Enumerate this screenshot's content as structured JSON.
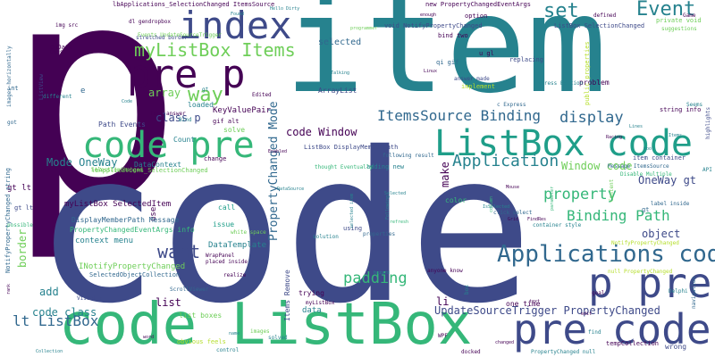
{
  "palette": {
    "dark_purple": "#440154",
    "indigo": "#3e4a89",
    "slate_blue": "#31688e",
    "teal": "#26828e",
    "sea_green": "#1f9e89",
    "green": "#35b779",
    "light_green": "#6ece58",
    "lime": "#b5de2b"
  },
  "words": [
    {
      "text": "p",
      "color": "#440154",
      "vertical": false
    },
    {
      "text": "item",
      "color": "#26828e",
      "vertical": false
    },
    {
      "text": "code",
      "color": "#3e4a89",
      "vertical": false
    },
    {
      "text": "code ListBox",
      "color": "#35b779",
      "vertical": false
    },
    {
      "text": "code pre",
      "color": "#35b779",
      "vertical": false
    },
    {
      "text": "ListBox code",
      "color": "#1f9e89",
      "vertical": false
    },
    {
      "text": "pre code",
      "color": "#3e4a89",
      "vertical": false
    },
    {
      "text": "p pre",
      "color": "#3e4a89",
      "vertical": false
    },
    {
      "text": "pre p",
      "color": "#440154",
      "vertical": false
    },
    {
      "text": "index",
      "color": "#3e4a89",
      "vertical": false
    },
    {
      "text": "Applications code",
      "color": "#31688e",
      "vertical": false
    },
    {
      "text": "myListBox Items",
      "color": "#6ece58",
      "vertical": false
    },
    {
      "text": "way",
      "color": "#6ece58",
      "vertical": false
    },
    {
      "text": "set",
      "color": "#26828e",
      "vertical": false
    },
    {
      "text": "Event",
      "color": "#26828e",
      "vertical": false
    },
    {
      "text": "ItemsSource Binding",
      "color": "#31688e",
      "vertical": false
    },
    {
      "text": "display",
      "color": "#31688e",
      "vertical": false
    },
    {
      "text": "Application",
      "color": "#26828e",
      "vertical": false
    },
    {
      "text": "property",
      "color": "#35b779",
      "vertical": false
    },
    {
      "text": "Binding Path",
      "color": "#35b779",
      "vertical": false
    },
    {
      "text": "want",
      "color": "#3e4a89",
      "vertical": false
    },
    {
      "text": "padding",
      "color": "#35b779",
      "vertical": false
    },
    {
      "text": "lt ListBox",
      "color": "#31688e",
      "vertical": true
    },
    {
      "text": "PropertyChanged Mode",
      "color": "#31688e",
      "vertical": true
    },
    {
      "text": "UpdateSourceTrigger PropertyChanged",
      "color": "#3e4a89",
      "vertical": false
    },
    {
      "text": "code Window",
      "color": "#440154",
      "vertical": false
    },
    {
      "text": "Window code",
      "color": "#6ece58",
      "vertical": false
    },
    {
      "text": "OneWay gt",
      "color": "#3e4a89",
      "vertical": false
    },
    {
      "text": "Mode OneWay",
      "color": "#26828e",
      "vertical": false
    },
    {
      "text": "class p",
      "color": "#3e4a89",
      "vertical": false
    },
    {
      "text": "array",
      "color": "#6ece58",
      "vertical": false
    },
    {
      "text": "code class",
      "color": "#26828e",
      "vertical": false
    },
    {
      "text": "myListBox SelectedItem",
      "color": "#440154",
      "vertical": false
    },
    {
      "text": "KeyValuePair",
      "color": "#440154",
      "vertical": false
    },
    {
      "text": "DataTemplate",
      "color": "#26828e",
      "vertical": false
    },
    {
      "text": "context menu",
      "color": "#26828e",
      "vertical": false
    },
    {
      "text": "selected",
      "color": "#31688e",
      "vertical": false
    },
    {
      "text": "border",
      "color": "#6ece58",
      "vertical": true
    },
    {
      "text": "object",
      "color": "#3e4a89",
      "vertical": false
    },
    {
      "text": "make",
      "color": "#440154",
      "vertical": true
    },
    {
      "text": "list",
      "color": "#440154",
      "vertical": false
    },
    {
      "text": "add",
      "color": "#26828e",
      "vertical": false
    },
    {
      "text": "li",
      "color": "#440154",
      "vertical": false
    },
    {
      "text": "data",
      "color": "#26828e",
      "vertical": false
    },
    {
      "text": "color",
      "color": "#35b779",
      "vertical": false
    },
    {
      "text": "gt lt",
      "color": "#440154",
      "vertical": false
    },
    {
      "text": "use",
      "color": "#440154",
      "vertical": true
    },
    {
      "text": "call",
      "color": "#1f9e89",
      "vertical": false
    },
    {
      "text": "issue",
      "color": "#1f9e89",
      "vertical": false
    },
    {
      "text": "problem",
      "color": "#440154",
      "vertical": false
    },
    {
      "text": "loaded",
      "color": "#26828e",
      "vertical": false
    },
    {
      "text": "solve",
      "color": "#6ece58",
      "vertical": false
    },
    {
      "text": "change",
      "color": "#440154",
      "vertical": false
    },
    {
      "text": "Count",
      "color": "#26828e",
      "vertical": false
    },
    {
      "text": "DataContext",
      "color": "#26828e",
      "vertical": false
    },
    {
      "text": "Path Events",
      "color": "#3e4a89",
      "vertical": false
    },
    {
      "text": "ArrayList",
      "color": "#3e4a89",
      "vertical": false
    },
    {
      "text": "one time",
      "color": "#440154",
      "vertical": false
    },
    {
      "text": "INotifyPropertyChanged",
      "color": "#6ece58",
      "vertical": false
    },
    {
      "text": "SelectedObjectCollection",
      "color": "#31688e",
      "vertical": false
    },
    {
      "text": "PropertyChangedEventArgs info",
      "color": "#35b779",
      "vertical": false
    },
    {
      "text": "DisplayMemberPath Message",
      "color": "#31688e",
      "vertical": false
    },
    {
      "text": "lbApplications_SelectionChanged ItemsSource",
      "color": "#440154",
      "vertical": false
    },
    {
      "text": "lbApplications_SelectionChanged",
      "color": "#6ece58",
      "vertical": false
    },
    {
      "text": "ListBox SelectionChanged",
      "color": "#3e4a89",
      "vertical": false
    },
    {
      "text": "void NotifyPropertyChanged",
      "color": "#3e4a89",
      "vertical": false
    },
    {
      "text": "new PropertyChangedEventArgs",
      "color": "#440154",
      "vertical": false
    },
    {
      "text": "Events UpdateSourceTrigger",
      "color": "#6ece58",
      "vertical": false
    },
    {
      "text": "ListBox DisplayMemberPath",
      "color": "#3e4a89",
      "vertical": false
    },
    {
      "text": "item container",
      "color": "#3e4a89",
      "vertical": false
    },
    {
      "text": "Message ItemsSource",
      "color": "#31688e",
      "vertical": false
    },
    {
      "text": "adding new",
      "color": "#26828e",
      "vertical": false
    },
    {
      "text": "NotifyPropertyChanged",
      "color": "#b5de2b",
      "vertical": false
    },
    {
      "text": "null PropertyChanged",
      "color": "#b5de2b",
      "vertical": false
    },
    {
      "text": "Items Remove",
      "color": "#3e4a89",
      "vertical": true
    },
    {
      "text": "NotifyPropertyChanged string",
      "color": "#31688e",
      "vertical": true
    },
    {
      "text": "SelectionChanged",
      "color": "#6ece58",
      "vertical": false
    },
    {
      "text": "implement",
      "color": "#b5de2b",
      "vertical": false
    },
    {
      "text": "Express Edition",
      "color": "#26828e",
      "vertical": false
    },
    {
      "text": "public properties",
      "color": "#b5de2b",
      "vertical": true
    },
    {
      "text": "ScrollViewer",
      "color": "#31688e",
      "vertical": false
    },
    {
      "text": "WrapPanel",
      "color": "#440154",
      "vertical": false
    },
    {
      "text": "placed inside",
      "color": "#440154",
      "vertical": false
    },
    {
      "text": "realize",
      "color": "#440154",
      "vertical": false
    },
    {
      "text": "trying",
      "color": "#440154",
      "vertical": false
    },
    {
      "text": "myListBox",
      "color": "#440154",
      "vertical": false
    },
    {
      "text": "string info",
      "color": "#440154",
      "vertical": false
    },
    {
      "text": "private void",
      "color": "#6ece58",
      "vertical": false
    },
    {
      "text": "bind two",
      "color": "#440154",
      "vertical": false
    },
    {
      "text": "stretched border",
      "color": "#3e4a89",
      "vertical": false
    },
    {
      "text": "different",
      "color": "#26828e",
      "vertical": false
    },
    {
      "text": "replacing",
      "color": "#3e4a89",
      "vertical": false
    },
    {
      "text": "following result",
      "color": "#31688e",
      "vertical": false
    },
    {
      "text": "thought Eventually",
      "color": "#35b779",
      "vertical": false
    },
    {
      "text": "gt lt",
      "color": "#3e4a89",
      "vertical": false
    },
    {
      "text": "solution",
      "color": "#26828e",
      "vertical": false
    },
    {
      "text": "using",
      "color": "#3e4a89",
      "vertical": false
    },
    {
      "text": "properties",
      "color": "#31688e",
      "vertical": false
    },
    {
      "text": "click select",
      "color": "#31688e",
      "vertical": false
    },
    {
      "text": "label inside",
      "color": "#31688e",
      "vertical": false
    },
    {
      "text": "anyone know",
      "color": "#440154",
      "vertical": false
    },
    {
      "text": "list boxes",
      "color": "#6ece58",
      "vertical": false
    },
    {
      "text": "Visual c",
      "color": "#3e4a89",
      "vertical": false
    },
    {
      "text": "control",
      "color": "#26828e",
      "vertical": false
    },
    {
      "text": "solved",
      "color": "#26828e",
      "vertical": false
    },
    {
      "text": "find",
      "color": "#26828e",
      "vertical": false
    },
    {
      "text": "wrong",
      "color": "#3e4a89",
      "vertical": false
    },
    {
      "text": "tempCollection",
      "color": "#440154",
      "vertical": false
    },
    {
      "text": "PropertyChanged null",
      "color": "#26828e",
      "vertical": false
    },
    {
      "text": "container style",
      "color": "#26828e",
      "vertical": false
    },
    {
      "text": "int",
      "color": "#31688e",
      "vertical": false
    },
    {
      "text": "got",
      "color": "#31688e",
      "vertical": false
    },
    {
      "text": "e",
      "color": "#31688e",
      "vertical": false
    },
    {
      "text": "c Express",
      "color": "#31688e",
      "vertical": false
    },
    {
      "text": "gt",
      "color": "#31688e",
      "vertical": false
    },
    {
      "text": "gt",
      "color": "#26828e",
      "vertical": false
    },
    {
      "text": "Edited",
      "color": "#440154",
      "vertical": false
    },
    {
      "text": "Ones",
      "color": "#440154",
      "vertical": false
    },
    {
      "text": "OnData",
      "color": "#440154",
      "vertical": false
    },
    {
      "text": "qi gif",
      "color": "#31688e",
      "vertical": false
    },
    {
      "text": "u gl",
      "color": "#440154",
      "vertical": false
    },
    {
      "text": "option",
      "color": "#440154",
      "vertical": false
    },
    {
      "text": "gif alt",
      "color": "#440154",
      "vertical": false
    },
    {
      "text": "Delphi",
      "color": "#26828e",
      "vertical": false
    },
    {
      "text": "WPF",
      "color": "#440154",
      "vertical": false
    },
    {
      "text": "goal",
      "color": "#440154",
      "vertical": false
    },
    {
      "text": "dl gendropbox",
      "color": "#440154",
      "vertical": false
    },
    {
      "text": "img src",
      "color": "#440154",
      "vertical": false
    },
    {
      "text": "Hello Dirty",
      "color": "#26828e",
      "vertical": false
    },
    {
      "text": "Found",
      "color": "#26828e",
      "vertical": false
    },
    {
      "text": "programmer",
      "color": "#6ece58",
      "vertical": false
    },
    {
      "text": "defined",
      "color": "#440154",
      "vertical": false
    },
    {
      "text": "Game",
      "color": "#440154",
      "vertical": false
    },
    {
      "text": "suggestions",
      "color": "#6ece58",
      "vertical": false
    },
    {
      "text": "highlights",
      "color": "#3e4a89",
      "vertical": true
    },
    {
      "text": "answer made",
      "color": "#3e4a89",
      "vertical": false
    },
    {
      "text": "Talking",
      "color": "#26828e",
      "vertical": false
    },
    {
      "text": "ListView",
      "color": "#3e4a89",
      "vertical": true
    },
    {
      "text": "images horizontally",
      "color": "#31688e",
      "vertical": true
    },
    {
      "text": "Bind",
      "color": "#26828e",
      "vertical": false
    },
    {
      "text": "font answer",
      "color": "#440154",
      "vertical": false
    },
    {
      "text": "Disable Multiple",
      "color": "#35b779",
      "vertical": false
    },
    {
      "text": "API",
      "color": "#26828e",
      "vertical": false
    },
    {
      "text": "Racing",
      "color": "#440154",
      "vertical": false
    },
    {
      "text": "Seems",
      "color": "#26828e",
      "vertical": false
    },
    {
      "text": "Items",
      "color": "#26828e",
      "vertical": false
    },
    {
      "text": "tool",
      "color": "#26828e",
      "vertical": false
    },
    {
      "text": "Lines",
      "color": "#26828e",
      "vertical": false
    },
    {
      "text": "Enabled",
      "color": "#440154",
      "vertical": false
    },
    {
      "text": "DataSource",
      "color": "#26828e",
      "vertical": false
    },
    {
      "text": "Selected",
      "color": "#26828e",
      "vertical": false
    },
    {
      "text": "possible",
      "color": "#35b779",
      "vertical": false
    },
    {
      "text": "selected item",
      "color": "#26828e",
      "vertical": true
    },
    {
      "text": "hazard",
      "color": "#26828e",
      "vertical": false
    },
    {
      "text": "white space",
      "color": "#6ece58",
      "vertical": false
    },
    {
      "text": "IsSelected",
      "color": "#26828e",
      "vertical": false
    },
    {
      "text": "parameter",
      "color": "#35b779",
      "vertical": true
    },
    {
      "text": "Content",
      "color": "#6ece58",
      "vertical": true
    },
    {
      "text": "Following",
      "color": "#26828e",
      "vertical": true
    },
    {
      "text": "refresh",
      "color": "#35b779",
      "vertical": false
    },
    {
      "text": "column",
      "color": "#35b779",
      "vertical": true
    },
    {
      "text": "Mouse",
      "color": "#440154",
      "vertical": false
    },
    {
      "text": "Grid",
      "color": "#440154",
      "vertical": false
    },
    {
      "text": "box",
      "color": "#26828e",
      "vertical": true
    },
    {
      "text": "FindRes",
      "color": "#440154",
      "vertical": false
    },
    {
      "text": "navigation",
      "color": "#31688e",
      "vertical": true
    },
    {
      "text": "changed",
      "color": "#440154",
      "vertical": false
    },
    {
      "text": "text",
      "color": "#440154",
      "vertical": false
    },
    {
      "text": "obvious feels",
      "color": "#b5de2b",
      "vertical": false
    },
    {
      "text": "images",
      "color": "#6ece58",
      "vertical": false
    },
    {
      "text": "word",
      "color": "#440154",
      "vertical": false
    },
    {
      "text": "docked",
      "color": "#440154",
      "vertical": false
    },
    {
      "text": "edit",
      "color": "#440154",
      "vertical": false
    },
    {
      "text": "Collection",
      "color": "#26828e",
      "vertical": false
    },
    {
      "text": "name",
      "color": "#26828e",
      "vertical": false
    },
    {
      "text": "Code",
      "color": "#26828e",
      "vertical": false
    },
    {
      "text": "enough",
      "color": "#440154",
      "vertical": false
    },
    {
      "text": "Linux",
      "color": "#440154",
      "vertical": false
    },
    {
      "text": "rank",
      "color": "#440154",
      "vertical": true
    }
  ]
}
